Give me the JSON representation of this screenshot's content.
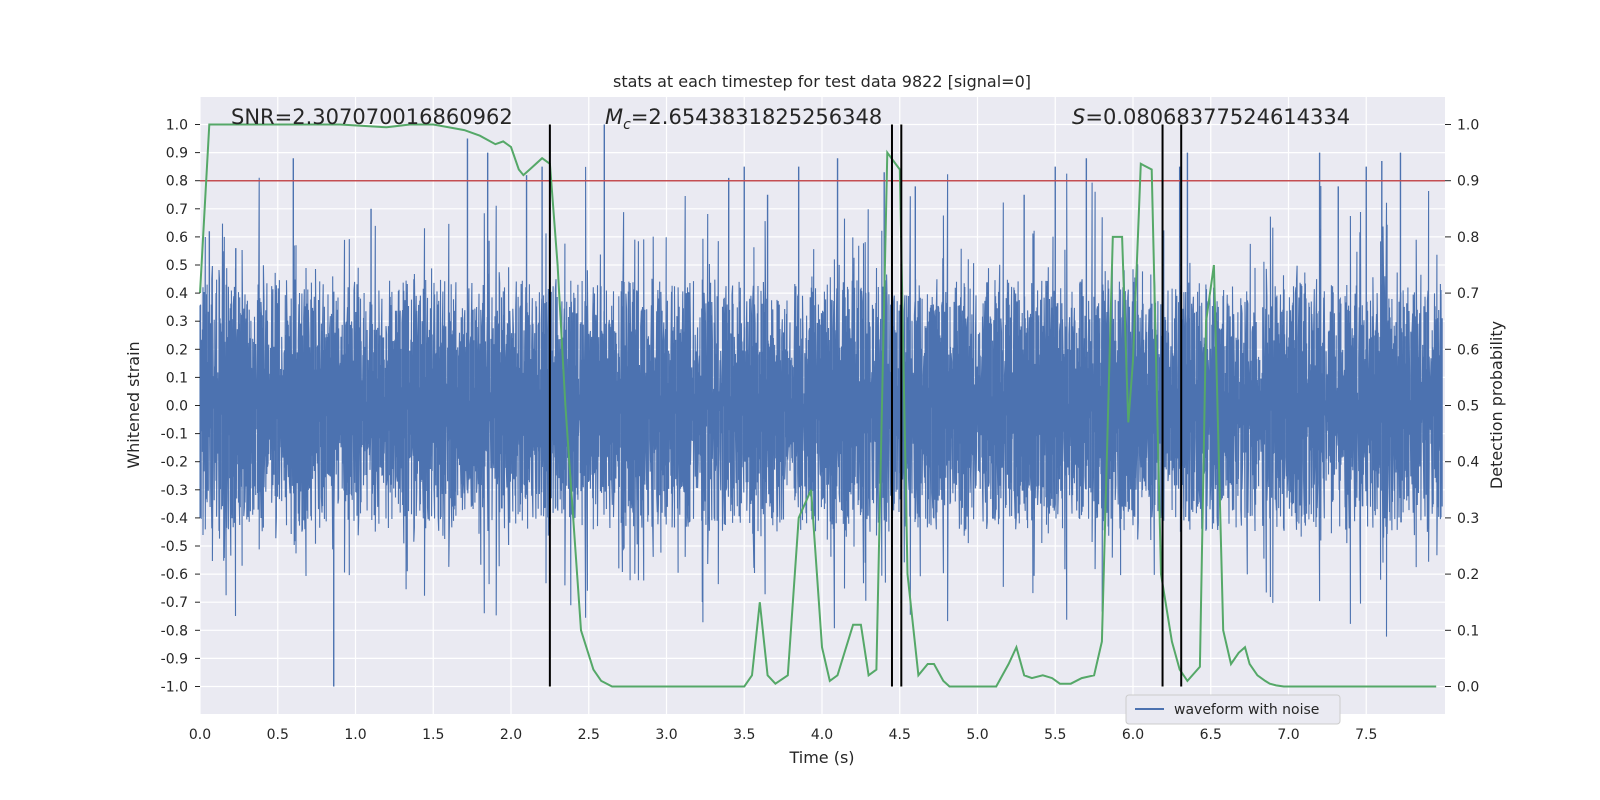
{
  "chart_data": {
    "type": "line",
    "title": "stats at each timestep for test data 9822 [signal=0]",
    "xlabel": "Time (s)",
    "ylabel": "Whitened strain",
    "y2label": "Detection probability",
    "xlim": [
      0.0,
      8.0
    ],
    "ylim": [
      -1.1,
      1.1
    ],
    "y2lim": [
      -0.05,
      1.03
    ],
    "x_ticks": [
      "0.0",
      "0.5",
      "1.0",
      "1.5",
      "2.0",
      "2.5",
      "3.0",
      "3.5",
      "4.0",
      "4.5",
      "5.0",
      "5.5",
      "6.0",
      "6.5",
      "7.0",
      "7.5"
    ],
    "y_ticks": [
      "1.0",
      "0.9",
      "0.8",
      "0.7",
      "0.6",
      "0.5",
      "0.4",
      "0.3",
      "0.2",
      "0.1",
      "0.0",
      "-0.1",
      "-0.2",
      "-0.3",
      "-0.4",
      "-0.5",
      "-0.6",
      "-0.7",
      "-0.8",
      "-0.9",
      "-1.0"
    ],
    "y2_ticks": [
      "1.0",
      "0.9",
      "0.8",
      "0.7",
      "0.6",
      "0.5",
      "0.4",
      "0.3",
      "0.2",
      "0.1",
      "0.0"
    ],
    "grid": true,
    "legend": {
      "placement": "lower-right",
      "entries": [
        "waveform with noise"
      ]
    },
    "annotations": {
      "snr": "SNR=2.307070016860962",
      "mc_symbol": "M",
      "mc_sub": "c",
      "mc_value": "=2.6543831825256348",
      "s_symbol": "S",
      "s_value": "=0.08068377524614334"
    },
    "series": [
      {
        "name": "waveform with noise",
        "axis": "left",
        "color": "#4c72b0",
        "description_values": {
          "typical_amplitude_range": [
            -0.45,
            0.45
          ],
          "peak_points": [
            [
              0.06,
              0.62
            ],
            [
              0.23,
              0.56
            ],
            [
              0.6,
              0.88
            ],
            [
              0.86,
              -1.0
            ],
            [
              1.1,
              0.7
            ],
            [
              1.72,
              0.95
            ],
            [
              1.85,
              0.9
            ],
            [
              2.1,
              0.82
            ],
            [
              2.2,
              0.85
            ],
            [
              2.25,
              0.95
            ],
            [
              2.6,
              1.0
            ],
            [
              3.4,
              0.81
            ],
            [
              3.5,
              0.85
            ],
            [
              3.65,
              0.75
            ],
            [
              3.85,
              0.85
            ],
            [
              4.1,
              0.88
            ],
            [
              4.4,
              0.83
            ],
            [
              4.45,
              0.98
            ],
            [
              4.6,
              0.78
            ],
            [
              5.3,
              0.75
            ],
            [
              5.5,
              0.85
            ],
            [
              5.7,
              0.88
            ],
            [
              6.3,
              0.85
            ],
            [
              6.35,
              0.9
            ],
            [
              7.2,
              0.9
            ],
            [
              7.32,
              0.78
            ],
            [
              7.5,
              0.85
            ],
            [
              7.6,
              0.87
            ],
            [
              7.72,
              0.9
            ]
          ]
        }
      },
      {
        "name": "",
        "axis": "right",
        "color": "#55a868",
        "x": [
          0.0,
          0.06,
          0.12,
          0.3,
          0.6,
          0.9,
          1.2,
          1.35,
          1.5,
          1.7,
          1.8,
          1.9,
          1.95,
          2.0,
          2.05,
          2.08,
          2.12,
          2.2,
          2.25,
          2.3,
          2.35,
          2.45,
          2.53,
          2.58,
          2.65,
          2.8,
          3.0,
          3.2,
          3.5,
          3.55,
          3.6,
          3.65,
          3.7,
          3.78,
          3.85,
          3.93,
          4.0,
          4.05,
          4.1,
          4.2,
          4.25,
          4.3,
          4.35,
          4.42,
          4.5,
          4.55,
          4.62,
          4.68,
          4.72,
          4.78,
          4.82,
          4.88,
          5.0,
          5.12,
          5.2,
          5.25,
          5.3,
          5.35,
          5.42,
          5.48,
          5.53,
          5.6,
          5.67,
          5.75,
          5.8,
          5.87,
          5.93,
          5.97,
          6.0,
          6.05,
          6.12,
          6.18,
          6.25,
          6.3,
          6.35,
          6.43,
          6.47,
          6.52,
          6.58,
          6.63,
          6.68,
          6.72,
          6.75,
          6.8,
          6.85,
          6.88,
          6.92,
          6.97,
          7.05,
          7.12,
          7.18,
          7.22,
          7.3,
          7.45,
          7.6,
          7.7,
          7.8,
          7.95
        ],
        "y": [
          0.7,
          1.0,
          1.0,
          1.0,
          1.0,
          1.0,
          0.995,
          1.0,
          1.0,
          0.99,
          0.98,
          0.965,
          0.97,
          0.96,
          0.92,
          0.91,
          0.92,
          0.94,
          0.93,
          0.75,
          0.5,
          0.1,
          0.03,
          0.01,
          0.0,
          0.0,
          0.0,
          0.0,
          0.0,
          0.02,
          0.15,
          0.02,
          0.005,
          0.02,
          0.3,
          0.35,
          0.07,
          0.01,
          0.02,
          0.11,
          0.11,
          0.02,
          0.03,
          0.95,
          0.92,
          0.2,
          0.02,
          0.04,
          0.04,
          0.01,
          0.0,
          0.0,
          0.0,
          0.0,
          0.04,
          0.07,
          0.02,
          0.015,
          0.02,
          0.015,
          0.005,
          0.005,
          0.015,
          0.02,
          0.08,
          0.8,
          0.8,
          0.47,
          0.58,
          0.93,
          0.92,
          0.2,
          0.08,
          0.03,
          0.01,
          0.035,
          0.65,
          0.75,
          0.1,
          0.04,
          0.06,
          0.07,
          0.04,
          0.02,
          0.01,
          0.005,
          0.002,
          0.0,
          0.0,
          0.0,
          0.0,
          0.0,
          0.0,
          0.0,
          0.0,
          0.0,
          0.0,
          0.0
        ]
      }
    ],
    "horizontal_line": {
      "axis": "left",
      "y": 0.8,
      "color": "#c44e52"
    },
    "vertical_lines": {
      "color": "#000000",
      "x": [
        2.25,
        4.45,
        4.51,
        6.19,
        6.31
      ],
      "y_range": [
        -1.0,
        1.0
      ]
    }
  }
}
